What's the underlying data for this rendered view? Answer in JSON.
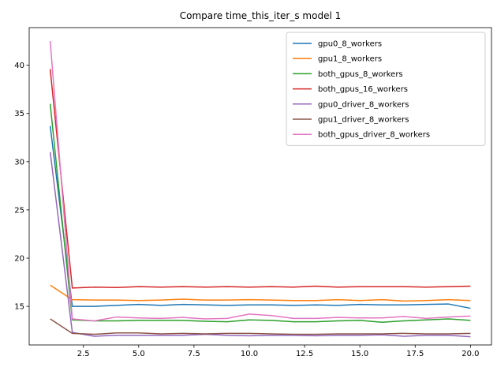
{
  "chart_data": {
    "type": "line",
    "title": "Compare time_this_iter_s model 1",
    "xlabel": "",
    "ylabel": "",
    "xlim": [
      0.05,
      20.95
    ],
    "ylim": [
      11.0,
      43.9
    ],
    "xticks": [
      2.5,
      5.0,
      7.5,
      10.0,
      12.5,
      15.0,
      17.5,
      20.0
    ],
    "xtick_labels": [
      "2.5",
      "5.0",
      "7.5",
      "10.0",
      "12.5",
      "15.0",
      "17.5",
      "20.0"
    ],
    "yticks": [
      15,
      20,
      25,
      30,
      35,
      40
    ],
    "ytick_labels": [
      "15",
      "20",
      "25",
      "30",
      "35",
      "40"
    ],
    "grid": false,
    "legend_position": "top-right",
    "x": [
      1,
      2,
      3,
      4,
      5,
      6,
      7,
      8,
      9,
      10,
      11,
      12,
      13,
      14,
      15,
      16,
      17,
      18,
      19,
      20
    ],
    "series": [
      {
        "name": "gpu0_8_workers",
        "color": "#1f77b4",
        "values": [
          33.7,
          15.0,
          15.0,
          15.1,
          15.2,
          15.1,
          15.2,
          15.15,
          15.1,
          15.15,
          15.15,
          15.1,
          15.15,
          15.1,
          15.2,
          15.15,
          15.15,
          15.2,
          15.25,
          14.8
        ]
      },
      {
        "name": "gpu1_8_workers",
        "color": "#ff7f0e",
        "values": [
          17.2,
          15.7,
          15.65,
          15.65,
          15.6,
          15.65,
          15.75,
          15.65,
          15.65,
          15.7,
          15.65,
          15.6,
          15.6,
          15.7,
          15.6,
          15.7,
          15.55,
          15.6,
          15.7,
          15.6
        ]
      },
      {
        "name": "both_gpus_8_workers",
        "color": "#2ca02c",
        "values": [
          36.0,
          13.6,
          13.5,
          13.5,
          13.55,
          13.55,
          13.55,
          13.45,
          13.4,
          13.6,
          13.55,
          13.4,
          13.4,
          13.5,
          13.55,
          13.35,
          13.5,
          13.6,
          13.7,
          13.55
        ]
      },
      {
        "name": "both_gpus_16_workers",
        "color": "#d62728",
        "values": [
          39.6,
          16.9,
          17.0,
          16.95,
          17.05,
          17.0,
          17.05,
          17.0,
          17.05,
          17.0,
          17.05,
          17.0,
          17.1,
          17.0,
          17.05,
          17.05,
          17.05,
          17.0,
          17.05,
          17.1
        ]
      },
      {
        "name": "gpu0_driver_8_workers",
        "color": "#9467bd",
        "values": [
          31.0,
          12.3,
          11.9,
          12.0,
          12.0,
          12.0,
          12.0,
          12.1,
          12.0,
          11.95,
          12.0,
          12.0,
          11.95,
          12.0,
          12.0,
          12.05,
          11.9,
          12.0,
          12.0,
          11.85
        ]
      },
      {
        "name": "gpu1_driver_8_workers",
        "color": "#8c564b",
        "values": [
          13.7,
          12.2,
          12.1,
          12.25,
          12.25,
          12.15,
          12.2,
          12.15,
          12.2,
          12.2,
          12.15,
          12.1,
          12.1,
          12.15,
          12.15,
          12.15,
          12.2,
          12.15,
          12.15,
          12.2
        ]
      },
      {
        "name": "both_gpus_driver_8_workers",
        "color": "#e377c2",
        "values": [
          42.5,
          13.7,
          13.5,
          13.9,
          13.8,
          13.75,
          13.85,
          13.7,
          13.75,
          14.2,
          14.05,
          13.75,
          13.75,
          13.85,
          13.8,
          13.8,
          13.95,
          13.75,
          13.9,
          14.0
        ]
      }
    ]
  }
}
